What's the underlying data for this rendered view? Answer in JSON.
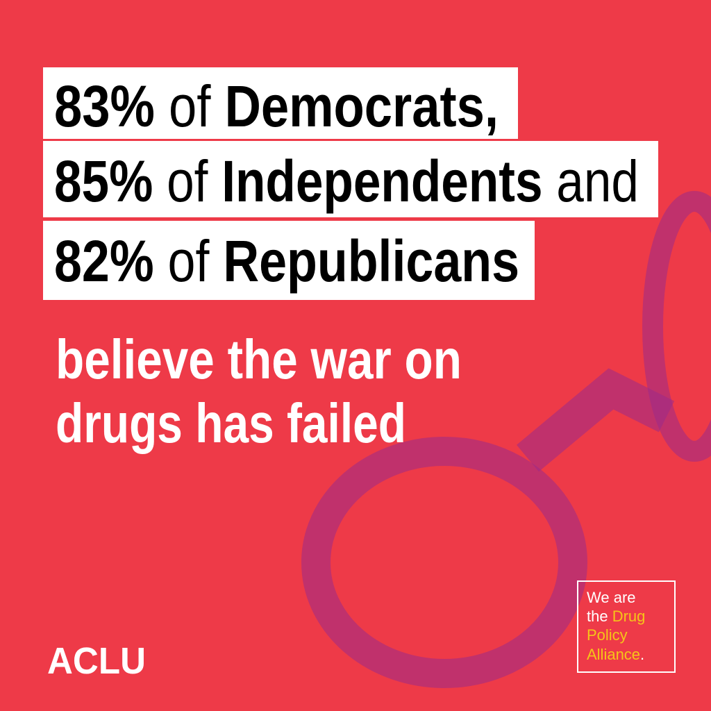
{
  "headline": {
    "lines": [
      [
        {
          "text": "83%",
          "bold": true
        },
        {
          "text": " of ",
          "bold": false
        },
        {
          "text": "Democrats,",
          "bold": true
        }
      ],
      [
        {
          "text": "85%",
          "bold": true
        },
        {
          "text": " of ",
          "bold": false
        },
        {
          "text": "Independents",
          "bold": true
        },
        {
          "text": " and",
          "bold": false
        }
      ],
      [
        {
          "text": "82%",
          "bold": true
        },
        {
          "text": " of ",
          "bold": false
        },
        {
          "text": "Republicans",
          "bold": true
        }
      ]
    ]
  },
  "subhead": {
    "lines": [
      "believe the war on",
      "drugs has failed"
    ]
  },
  "logo": "ACLU",
  "badge": {
    "lines": [
      [
        {
          "text": "We are",
          "color": "#ffffff"
        }
      ],
      [
        {
          "text": "the ",
          "color": "#ffffff"
        },
        {
          "text": "Drug",
          "color": "#f5c518"
        }
      ],
      [
        {
          "text": "Policy",
          "color": "#f5c518"
        }
      ],
      [
        {
          "text": "Alliance",
          "color": "#f5c518"
        },
        {
          "text": ".",
          "color": "#ffffff"
        }
      ]
    ]
  }
}
